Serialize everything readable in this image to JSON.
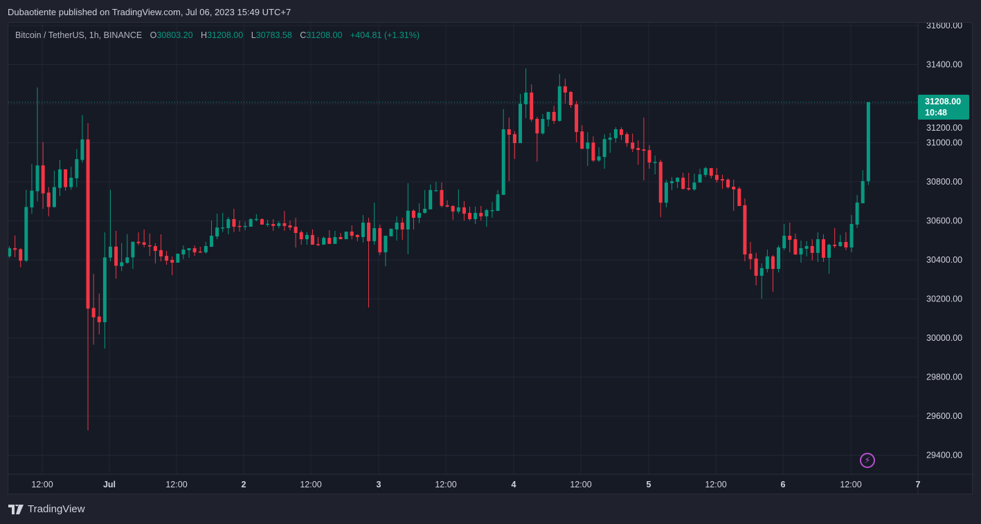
{
  "header": {
    "published": "Dubaotiente published on TradingView.com, Jul 06, 2023 15:49 UTC+7"
  },
  "legend": {
    "symbol": "Bitcoin / TetherUS, 1h, BINANCE",
    "o_label": "O",
    "o": "30803.20",
    "h_label": "H",
    "h": "31208.00",
    "l_label": "L",
    "l": "30783.58",
    "c_label": "C",
    "c": "31208.00",
    "change": "+404.81 (+1.31%)"
  },
  "last_price": {
    "price": "31208.00",
    "countdown": "10:48"
  },
  "footer": {
    "brand": "TradingView"
  },
  "colors": {
    "up": "#089981",
    "down": "#f23645",
    "background": "#161a25",
    "grid": "#232735"
  },
  "chart_data": {
    "type": "candlestick",
    "title": "Bitcoin / TetherUS, 1h, BINANCE",
    "interval": "1h",
    "first_candle": "2023-06-30 06:00",
    "ylim": [
      29300,
      31650
    ],
    "grid": true,
    "y_ticks": [
      "31600.00",
      "31400.00",
      "31200.00",
      "31000.00",
      "30800.00",
      "30600.00",
      "30400.00",
      "30200.00",
      "30000.00",
      "29800.00",
      "29600.00",
      "29400.00"
    ],
    "x_ticks": [
      "12:00",
      "Jul",
      "12:00",
      "2",
      "12:00",
      "3",
      "12:00",
      "4",
      "12:00",
      "5",
      "12:00",
      "6",
      "12:00",
      "7"
    ],
    "last_close": 31208,
    "ohlc": [
      [
        30418,
        30470,
        30410,
        30460
      ],
      [
        30460,
        30525,
        30414,
        30452
      ],
      [
        30455,
        30460,
        30362,
        30396
      ],
      [
        30396,
        30759,
        30389,
        30671
      ],
      [
        30669,
        30891,
        30636,
        30755
      ],
      [
        30752,
        31283,
        30700,
        30884
      ],
      [
        30884,
        31003,
        30662,
        30741
      ],
      [
        30745,
        30773,
        30623,
        30671
      ],
      [
        30671,
        30857,
        30668,
        30773
      ],
      [
        30769,
        30912,
        30727,
        30864
      ],
      [
        30864,
        30864,
        30755,
        30773
      ],
      [
        30773,
        30877,
        30759,
        30821
      ],
      [
        30818,
        30968,
        30773,
        30916
      ],
      [
        30912,
        31142,
        30898,
        31017
      ],
      [
        31017,
        31101,
        29527,
        30151
      ],
      [
        30154,
        30329,
        29966,
        30106
      ],
      [
        30110,
        30228,
        30019,
        30081
      ],
      [
        30081,
        30541,
        29946,
        30413
      ],
      [
        30412,
        30759,
        30392,
        30468
      ],
      [
        30468,
        30549,
        30304,
        30370
      ],
      [
        30368,
        30486,
        30343,
        30388
      ],
      [
        30385,
        30532,
        30381,
        30413
      ],
      [
        30413,
        30493,
        30354,
        30493
      ],
      [
        30493,
        30541,
        30475,
        30486
      ],
      [
        30490,
        30556,
        30465,
        30478
      ],
      [
        30475,
        30535,
        30421,
        30469
      ],
      [
        30471,
        30485,
        30382,
        30446
      ],
      [
        30450,
        30531,
        30393,
        30418
      ],
      [
        30421,
        30446,
        30375,
        30396
      ],
      [
        30400,
        30418,
        30322,
        30386
      ],
      [
        30386,
        30432,
        30386,
        30432
      ],
      [
        30428,
        30474,
        30404,
        30453
      ],
      [
        30450,
        30460,
        30411,
        30460
      ],
      [
        30460,
        30474,
        30421,
        30439
      ],
      [
        30443,
        30467,
        30436,
        30440
      ],
      [
        30439,
        30492,
        30432,
        30471
      ],
      [
        30467,
        30602,
        30467,
        30524
      ],
      [
        30520,
        30637,
        30506,
        30566
      ],
      [
        30563,
        30641,
        30542,
        30566
      ],
      [
        30563,
        30620,
        30531,
        30609
      ],
      [
        30609,
        30662,
        30542,
        30570
      ],
      [
        30574,
        30602,
        30545,
        30572
      ],
      [
        30571,
        30595,
        30552,
        30574
      ],
      [
        30570,
        30613,
        30570,
        30609
      ],
      [
        30608,
        30634,
        30598,
        30610
      ],
      [
        30609,
        30613,
        30581,
        30581
      ],
      [
        30583,
        30605,
        30570,
        30585
      ],
      [
        30584,
        30609,
        30549,
        30574
      ],
      [
        30574,
        30598,
        30563,
        30588
      ],
      [
        30588,
        30651,
        30549,
        30574
      ],
      [
        30577,
        30602,
        30552,
        30566
      ],
      [
        30570,
        30616,
        30464,
        30538
      ],
      [
        30542,
        30552,
        30478,
        30506
      ],
      [
        30506,
        30542,
        30478,
        30528
      ],
      [
        30528,
        30556,
        30478,
        30478
      ],
      [
        30481,
        30517,
        30471,
        30479
      ],
      [
        30478,
        30521,
        30478,
        30513
      ],
      [
        30513,
        30552,
        30482,
        30482
      ],
      [
        30482,
        30549,
        30482,
        30517
      ],
      [
        30517,
        30538,
        30506,
        30506
      ],
      [
        30506,
        30545,
        30506,
        30545
      ],
      [
        30545,
        30577,
        30506,
        30524
      ],
      [
        30528,
        30531,
        30496,
        30517
      ],
      [
        30517,
        30630,
        30489,
        30591
      ],
      [
        30591,
        30616,
        30156,
        30496
      ],
      [
        30496,
        30694,
        30478,
        30563
      ],
      [
        30563,
        30581,
        30425,
        30439
      ],
      [
        30439,
        30524,
        30368,
        30524
      ],
      [
        30521,
        30560,
        30521,
        30560
      ],
      [
        30556,
        30623,
        30499,
        30591
      ],
      [
        30591,
        30616,
        30503,
        30556
      ],
      [
        30556,
        30793,
        30429,
        30652
      ],
      [
        30652,
        30659,
        30556,
        30616
      ],
      [
        30616,
        30690,
        30588,
        30641
      ],
      [
        30641,
        30758,
        30637,
        30662
      ],
      [
        30659,
        30786,
        30659,
        30758
      ],
      [
        30754,
        30800,
        30751,
        30757
      ],
      [
        30758,
        30797,
        30669,
        30677
      ],
      [
        30680,
        30705,
        30669,
        30673
      ],
      [
        30676,
        30681,
        30605,
        30648
      ],
      [
        30648,
        30761,
        30637,
        30669
      ],
      [
        30669,
        30701,
        30602,
        30637
      ],
      [
        30641,
        30673,
        30602,
        30609
      ],
      [
        30609,
        30673,
        30584,
        30641
      ],
      [
        30641,
        30676,
        30602,
        30623
      ],
      [
        30623,
        30662,
        30570,
        30655
      ],
      [
        30653,
        30697,
        30616,
        30655
      ],
      [
        30651,
        30758,
        30651,
        30736
      ],
      [
        30733,
        31172,
        30733,
        31069
      ],
      [
        31069,
        31129,
        30804,
        31041
      ],
      [
        31044,
        31059,
        30917,
        30998
      ],
      [
        30998,
        31250,
        30998,
        31200
      ],
      [
        31197,
        31381,
        31126,
        31257
      ],
      [
        31257,
        31299,
        31108,
        31119
      ],
      [
        31122,
        31133,
        30903,
        31048
      ],
      [
        31048,
        31147,
        31041,
        31122
      ],
      [
        31119,
        31158,
        31083,
        31158
      ],
      [
        31158,
        31189,
        31097,
        31112
      ],
      [
        31112,
        31352,
        31108,
        31289
      ],
      [
        31289,
        31328,
        31200,
        31257
      ],
      [
        31260,
        31264,
        31179,
        31193
      ],
      [
        31197,
        31214,
        31002,
        31055
      ],
      [
        31058,
        31090,
        30969,
        30969
      ],
      [
        30969,
        31054,
        30881,
        31001
      ],
      [
        31001,
        31033,
        30902,
        30909
      ],
      [
        30909,
        30977,
        30902,
        30930
      ],
      [
        30927,
        31044,
        30867,
        31019
      ],
      [
        31015,
        31051,
        30948,
        31026
      ],
      [
        31023,
        31079,
        31001,
        31069
      ],
      [
        31069,
        31079,
        31015,
        31040
      ],
      [
        31044,
        31054,
        30980,
        30998
      ],
      [
        31001,
        31047,
        30952,
        30969
      ],
      [
        30973,
        31012,
        30888,
        30963
      ],
      [
        30966,
        31129,
        30807,
        30959
      ],
      [
        30962,
        30987,
        30867,
        30899
      ],
      [
        30898,
        30934,
        30838,
        30902
      ],
      [
        30902,
        30913,
        30619,
        30693
      ],
      [
        30693,
        30810,
        30669,
        30796
      ],
      [
        30793,
        30824,
        30757,
        30803
      ],
      [
        30800,
        30824,
        30768,
        30821
      ],
      [
        30821,
        30846,
        30761,
        30764
      ],
      [
        30768,
        30846,
        30754,
        30761
      ],
      [
        30761,
        30842,
        30754,
        30796
      ],
      [
        30796,
        30867,
        30796,
        30838
      ],
      [
        30835,
        30877,
        30824,
        30870
      ],
      [
        30870,
        30870,
        30817,
        30831
      ],
      [
        30835,
        30870,
        30796,
        30810
      ],
      [
        30814,
        30836,
        30764,
        30807
      ],
      [
        30811,
        30818,
        30765,
        30772
      ],
      [
        30775,
        30811,
        30651,
        30761
      ],
      [
        30765,
        30775,
        30676,
        30676
      ],
      [
        30680,
        30715,
        30393,
        30428
      ],
      [
        30432,
        30492,
        30351,
        30404
      ],
      [
        30407,
        30436,
        30269,
        30319
      ],
      [
        30319,
        30382,
        30202,
        30358
      ],
      [
        30354,
        30453,
        30336,
        30418
      ],
      [
        30418,
        30425,
        30237,
        30354
      ],
      [
        30354,
        30474,
        30336,
        30464
      ],
      [
        30460,
        30584,
        30450,
        30524
      ],
      [
        30524,
        30591,
        30439,
        30503
      ],
      [
        30506,
        30535,
        30425,
        30428
      ],
      [
        30428,
        30499,
        30386,
        30460
      ],
      [
        30457,
        30496,
        30418,
        30471
      ],
      [
        30471,
        30506,
        30397,
        30436
      ],
      [
        30436,
        30542,
        30390,
        30506
      ],
      [
        30506,
        30531,
        30390,
        30411
      ],
      [
        30411,
        30482,
        30329,
        30478
      ],
      [
        30478,
        30563,
        30460,
        30471
      ],
      [
        30471,
        30528,
        30467,
        30492
      ],
      [
        30492,
        30542,
        30450,
        30464
      ],
      [
        30464,
        30630,
        30439,
        30584
      ],
      [
        30581,
        30733,
        30563,
        30694
      ],
      [
        30690,
        30860,
        30690,
        30804
      ],
      [
        30803.2,
        31208,
        30783.58,
        31208
      ]
    ]
  }
}
